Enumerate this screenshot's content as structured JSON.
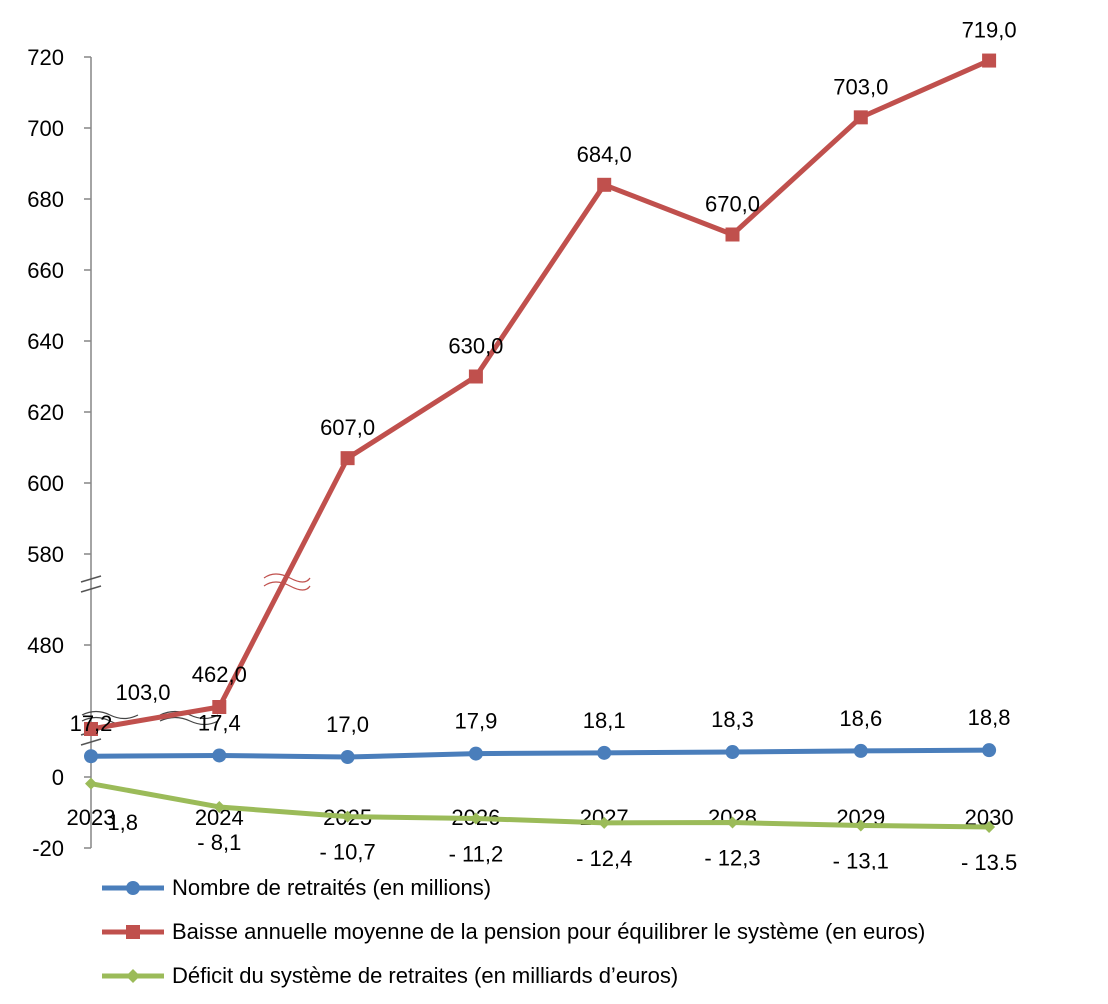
{
  "chart_data": {
    "type": "line",
    "x": [
      "2023",
      "2024",
      "2025",
      "2026",
      "2027",
      "2028",
      "2029",
      "2030"
    ],
    "y_ticks": [
      "720",
      "700",
      "680",
      "660",
      "640",
      "620",
      "600",
      "580",
      "480",
      "0",
      "-20"
    ],
    "series": [
      {
        "name": "Nombre de retraités (en millions)",
        "color": "#4a7ebb",
        "marker": "circle",
        "values": [
          17.2,
          17.4,
          17.0,
          17.9,
          18.1,
          18.3,
          18.6,
          18.8
        ],
        "labels": [
          "17,2",
          "17,4",
          "17,0",
          "17,9",
          "18,1",
          "18,3",
          "18,6",
          "18,8"
        ]
      },
      {
        "name": "Baisse annuelle moyenne de  la pension  pour équilibrer le système (en euros)",
        "color": "#c0504d",
        "marker": "square",
        "values": [
          103.0,
          462.0,
          607.0,
          630.0,
          684.0,
          670.0,
          703.0,
          719.0
        ],
        "labels": [
          "103,0",
          "462,0",
          "607,0",
          "630,0",
          "684,0",
          "670,0",
          "703,0",
          "719,0"
        ]
      },
      {
        "name": "Déficit du système de retraites (en milliards d’euros)",
        "color": "#9bbb59",
        "marker": "diamond",
        "values": [
          -1.8,
          -8.1,
          -10.7,
          -11.2,
          -12.4,
          -12.3,
          -13.1,
          -13.5
        ],
        "labels": [
          "- 1,8",
          "- 8,1",
          "- 10,7",
          "- 11,2",
          "- 12,4",
          "- 12,3",
          "- 13,1",
          "- 13,5"
        ]
      }
    ],
    "axis_breaks": true,
    "legend_position": "bottom"
  }
}
